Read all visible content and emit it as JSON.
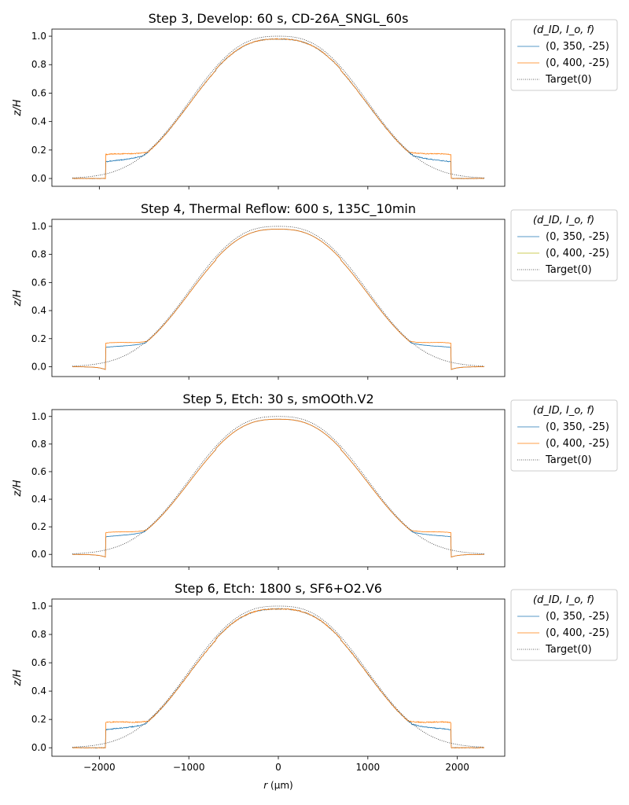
{
  "x_label_var": "r",
  "x_label_unit": "(μm)",
  "y_label": "z/H",
  "legend_title": "(d_ID, I_o, f)",
  "chart_data": [
    {
      "type": "line",
      "title": "Step 3, Develop: 60 s, CD-26A_SNGL_60s",
      "xlim": [
        -2530,
        2530
      ],
      "ylim": [
        -0.055,
        1.05
      ],
      "xticks": [
        -2000,
        -1000,
        0,
        1000,
        2000
      ],
      "yticks": [
        0.0,
        0.2,
        0.4,
        0.6,
        0.8,
        1.0
      ],
      "show_xticklabels": false,
      "step_r": 1930,
      "plateau_level": 0.98,
      "edge_dip": 0.0,
      "noise": 0.006,
      "series": [
        {
          "name": "(0, 350, -25)",
          "color": "#1f77b4",
          "step_height": 0.1,
          "step_width": 650
        },
        {
          "name": "(0, 400, -25)",
          "color": "#ff7f0e",
          "step_height": 0.15,
          "step_width": 650
        },
        {
          "name": "Target(0)",
          "color": "#333333",
          "style": "dotted"
        }
      ]
    },
    {
      "type": "line",
      "title": "Step 4, Thermal Reflow: 600 s, 135C_10min",
      "xlim": [
        -2530,
        2530
      ],
      "ylim": [
        -0.07,
        1.05
      ],
      "xticks": [
        -2000,
        -1000,
        0,
        1000,
        2000
      ],
      "yticks": [
        0.0,
        0.2,
        0.4,
        0.6,
        0.8,
        1.0
      ],
      "show_xticklabels": false,
      "step_r": 1930,
      "plateau_level": 0.97,
      "edge_dip": -0.02,
      "noise": 0.002,
      "series": [
        {
          "name": "(0, 350, -25)",
          "color": "#1f77b4",
          "step_height": 0.12,
          "step_width": 620
        },
        {
          "name": "(0, 400, -25)",
          "color": "#ff7f0e",
          "step_height": 0.15,
          "step_width": 620
        },
        {
          "name": "Target(0)",
          "color": "#333333",
          "style": "dotted"
        }
      ],
      "legend_colors": [
        "#1f77b4",
        "#bcbd22",
        "#333333"
      ]
    },
    {
      "type": "line",
      "title": "Step 5, Etch: 30 s, smOOth.V2",
      "xlim": [
        -2530,
        2530
      ],
      "ylim": [
        -0.09,
        1.05
      ],
      "xticks": [
        -2000,
        -1000,
        0,
        1000,
        2000
      ],
      "yticks": [
        0.0,
        0.2,
        0.4,
        0.6,
        0.8,
        1.0
      ],
      "show_xticklabels": false,
      "step_r": 1930,
      "plateau_level": 0.96,
      "edge_dip": -0.02,
      "noise": 0.002,
      "series": [
        {
          "name": "(0, 350, -25)",
          "color": "#1f77b4",
          "step_height": 0.11,
          "step_width": 600
        },
        {
          "name": "(0, 400, -25)",
          "color": "#ff7f0e",
          "step_height": 0.14,
          "step_width": 600
        },
        {
          "name": "Target(0)",
          "color": "#333333",
          "style": "dotted"
        }
      ]
    },
    {
      "type": "line",
      "title": "Step 6, Etch: 1800 s, SF6+O2.V6",
      "xlim": [
        -2530,
        2530
      ],
      "ylim": [
        -0.06,
        1.05
      ],
      "xticks": [
        -2000,
        -1000,
        0,
        1000,
        2000
      ],
      "xticklabels": [
        "−2000",
        "−1000",
        "0",
        "1000",
        "2000"
      ],
      "yticks": [
        0.0,
        0.2,
        0.4,
        0.6,
        0.8,
        1.0
      ],
      "show_xticklabels": true,
      "step_r": 1930,
      "plateau_level": 0.975,
      "edge_dip": 0.0,
      "noise": 0.007,
      "series": [
        {
          "name": "(0, 350, -25)",
          "color": "#1f77b4",
          "step_height": 0.11,
          "step_width": 640
        },
        {
          "name": "(0, 400, -25)",
          "color": "#ff7f0e",
          "step_height": 0.16,
          "step_width": 640
        },
        {
          "name": "Target(0)",
          "color": "#333333",
          "style": "dotted"
        }
      ]
    }
  ]
}
